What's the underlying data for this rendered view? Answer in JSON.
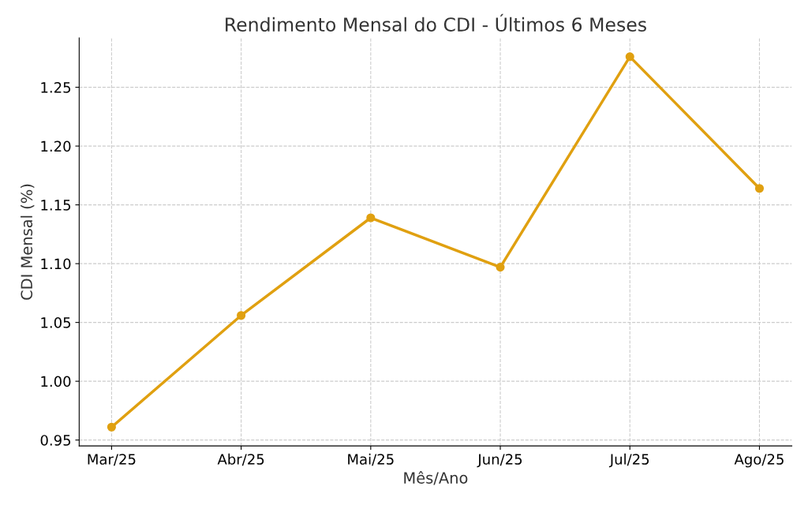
{
  "chart_data": {
    "type": "line",
    "title": "Rendimento Mensal do CDI - Últimos 6 Meses",
    "xlabel": "Mês/Ano",
    "ylabel": "CDI Mensal (%)",
    "categories": [
      "Mar/25",
      "Abr/25",
      "Mai/25",
      "Jun/25",
      "Jul/25",
      "Ago/25"
    ],
    "series": [
      {
        "color": "#e0a010",
        "values": [
          0.961,
          1.056,
          1.139,
          1.097,
          1.276,
          1.164
        ]
      }
    ],
    "ylim": [
      0.945,
      1.292
    ],
    "yticks": [
      {
        "value": 0.95,
        "label": "0.95"
      },
      {
        "value": 1.0,
        "label": "1.00"
      },
      {
        "value": 1.05,
        "label": "1.05"
      },
      {
        "value": 1.1,
        "label": "1.10"
      },
      {
        "value": 1.15,
        "label": "1.15"
      },
      {
        "value": 1.2,
        "label": "1.20"
      },
      {
        "value": 1.25,
        "label": "1.25"
      }
    ],
    "grid": true,
    "marker": "circle",
    "line_style": "solid"
  }
}
